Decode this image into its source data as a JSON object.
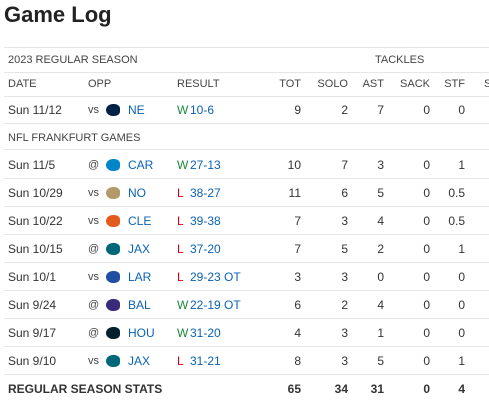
{
  "header": {
    "title": "Game Log"
  },
  "table": {
    "season": "2023 REGULAR SEASON",
    "group": "TACKLES",
    "columns": [
      "DATE",
      "OPP",
      "RESULT",
      "TOT",
      "SOLO",
      "AST",
      "SACK",
      "STF",
      "S"
    ],
    "sections": [
      {
        "rows": [
          {
            "date": "Sun 11/12",
            "loc": "vs",
            "opp": "NE",
            "logo": "#002244",
            "outcome": "W",
            "score": "10-6",
            "stats": [
              9,
              2,
              7,
              0,
              0
            ]
          }
        ]
      },
      {
        "label": "NFL FRANKFURT GAMES",
        "rows": [
          {
            "date": "Sun 11/5",
            "loc": "@",
            "opp": "CAR",
            "logo": "#0085ca",
            "outcome": "W",
            "score": "27-13",
            "stats": [
              10,
              7,
              3,
              0,
              1
            ]
          },
          {
            "date": "Sun 10/29",
            "loc": "vs",
            "opp": "NO",
            "logo": "#b39a6a",
            "outcome": "L",
            "score": "38-27",
            "stats": [
              11,
              6,
              5,
              0,
              0.5
            ]
          },
          {
            "date": "Sun 10/22",
            "loc": "vs",
            "opp": "CLE",
            "logo": "#e35a1a",
            "outcome": "L",
            "score": "39-38",
            "stats": [
              7,
              3,
              4,
              0,
              0.5
            ]
          },
          {
            "date": "Sun 10/15",
            "loc": "@",
            "opp": "JAX",
            "logo": "#006778",
            "outcome": "L",
            "score": "37-20",
            "stats": [
              7,
              5,
              2,
              0,
              1
            ]
          },
          {
            "date": "Sun 10/1",
            "loc": "vs",
            "opp": "LAR",
            "logo": "#1e4fa3",
            "outcome": "L",
            "score": "29-23 OT",
            "stats": [
              3,
              3,
              0,
              0,
              0
            ]
          },
          {
            "date": "Sun 9/24",
            "loc": "@",
            "opp": "BAL",
            "logo": "#3a2a7a",
            "outcome": "W",
            "score": "22-19 OT",
            "stats": [
              6,
              2,
              4,
              0,
              0
            ]
          },
          {
            "date": "Sun 9/17",
            "loc": "@",
            "opp": "HOU",
            "logo": "#03202f",
            "outcome": "W",
            "score": "31-20",
            "stats": [
              4,
              3,
              1,
              0,
              0
            ]
          },
          {
            "date": "Sun 9/10",
            "loc": "vs",
            "opp": "JAX",
            "logo": "#006778",
            "outcome": "L",
            "score": "31-21",
            "stats": [
              8,
              3,
              5,
              0,
              1
            ]
          }
        ]
      }
    ],
    "totals": {
      "label": "REGULAR SEASON STATS",
      "stats": [
        65,
        34,
        31,
        0,
        4
      ]
    }
  }
}
